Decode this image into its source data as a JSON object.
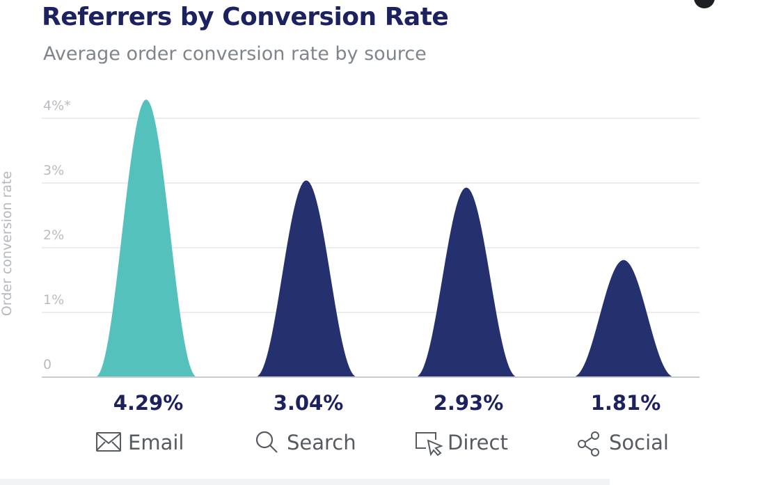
{
  "chart_data": {
    "type": "area",
    "title": "Referrers by Conversion Rate",
    "subtitle": "Average order conversion rate by source",
    "ylabel": "Order conversion rate",
    "ylim": [
      0,
      4
    ],
    "yticks": [
      {
        "value": 0,
        "label": "0"
      },
      {
        "value": 1,
        "label": "1%"
      },
      {
        "value": 2,
        "label": "2%"
      },
      {
        "value": 3,
        "label": "3%"
      },
      {
        "value": 4,
        "label": "4%*"
      }
    ],
    "grid": true,
    "categories": [
      "Email",
      "Search",
      "Direct",
      "Social"
    ],
    "values": [
      4.29,
      3.04,
      2.93,
      1.81
    ],
    "value_labels": [
      "4.29%",
      "3.04%",
      "2.93%",
      "1.81%"
    ],
    "icons": [
      "envelope-icon",
      "search-icon",
      "cursor-icon",
      "share-icon"
    ],
    "colors": [
      "#55c1bc",
      "#25306f",
      "#25306f",
      "#25306f"
    ]
  },
  "colors": {
    "title": "#1c2260",
    "highlight": "#55c1bc",
    "primary": "#25306f",
    "grid": "#e4e6e8"
  }
}
